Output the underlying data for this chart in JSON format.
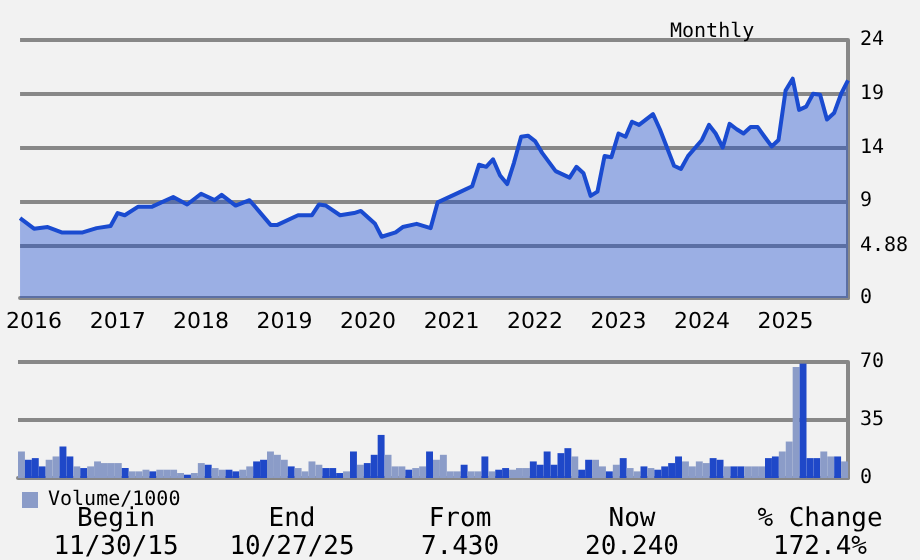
{
  "chart_data": [
    {
      "type": "area",
      "subtitle": "Monthly",
      "color": "#1a4bd0",
      "grid": "y",
      "xlim": [
        "2015-11",
        "2025-10"
      ],
      "xticks": [
        "2016",
        "2017",
        "2018",
        "2019",
        "2020",
        "2021",
        "2022",
        "2023",
        "2024",
        "2025"
      ],
      "ylim": [
        0,
        24
      ],
      "yticks": [
        0,
        4.88,
        9,
        14,
        19,
        24
      ],
      "x": [
        "2015-11",
        "2016-01",
        "2016-03",
        "2016-05",
        "2016-08",
        "2016-10",
        "2016-12",
        "2017-01",
        "2017-02",
        "2017-04",
        "2017-06",
        "2017-09",
        "2017-11",
        "2018-01",
        "2018-03",
        "2018-04",
        "2018-06",
        "2018-08",
        "2018-11",
        "2018-12",
        "2019-03",
        "2019-05",
        "2019-06",
        "2019-07",
        "2019-09",
        "2019-11",
        "2019-12",
        "2020-02",
        "2020-03",
        "2020-05",
        "2020-06",
        "2020-08",
        "2020-10",
        "2020-11",
        "2021-02",
        "2021-04",
        "2021-05",
        "2021-06",
        "2021-07",
        "2021-08",
        "2021-09",
        "2021-10",
        "2021-11",
        "2021-12",
        "2022-01",
        "2022-02",
        "2022-04",
        "2022-06",
        "2022-07",
        "2022-08",
        "2022-09",
        "2022-10",
        "2022-11",
        "2022-12",
        "2023-01",
        "2023-02",
        "2023-03",
        "2023-04",
        "2023-06",
        "2023-07",
        "2023-09",
        "2023-10",
        "2023-11",
        "2024-01",
        "2024-02",
        "2024-03",
        "2024-04",
        "2024-05",
        "2024-06",
        "2024-07",
        "2024-08",
        "2024-09",
        "2024-10",
        "2024-11",
        "2024-12",
        "2025-01",
        "2025-02",
        "2025-03",
        "2025-04",
        "2025-05",
        "2025-06",
        "2025-07",
        "2025-08",
        "2025-09",
        "2025-10"
      ],
      "values": [
        7.43,
        6.45,
        6.6,
        6.1,
        6.1,
        6.5,
        6.7,
        7.9,
        7.7,
        8.5,
        8.5,
        9.4,
        8.7,
        9.7,
        9.1,
        9.6,
        8.6,
        9.1,
        6.8,
        6.8,
        7.7,
        7.7,
        8.7,
        8.6,
        7.7,
        7.9,
        8.1,
        6.9,
        5.7,
        6.1,
        6.6,
        6.9,
        6.5,
        8.9,
        9.8,
        10.4,
        12.4,
        12.2,
        12.9,
        11.4,
        10.6,
        12.6,
        15.0,
        15.1,
        14.6,
        13.5,
        11.8,
        11.2,
        12.2,
        11.6,
        9.5,
        9.9,
        13.2,
        13.1,
        15.3,
        15.0,
        16.4,
        16.1,
        17.1,
        15.7,
        12.3,
        12.0,
        13.2,
        14.7,
        16.1,
        15.3,
        14.0,
        16.2,
        15.7,
        15.3,
        15.9,
        15.9,
        15.0,
        14.1,
        14.7,
        19.3,
        20.4,
        17.5,
        17.8,
        19.0,
        18.9,
        16.6,
        17.2,
        19.0,
        20.24
      ]
    },
    {
      "type": "bar",
      "grid": "y",
      "legend": "bottom left",
      "tick_labels": "y",
      "ylim": [
        0,
        70
      ],
      "yticks": [
        0,
        35,
        70
      ],
      "categories": [
        null,
        null,
        null,
        null,
        null,
        null,
        null,
        null,
        null,
        null,
        null,
        null,
        null,
        null,
        null,
        null,
        null,
        null,
        null,
        null,
        null,
        null,
        null,
        null,
        null,
        null,
        null,
        null,
        null,
        null,
        null,
        null,
        null,
        null,
        null,
        null,
        null,
        null,
        null,
        null,
        null,
        null,
        null,
        null,
        null,
        null,
        null,
        null,
        null,
        null,
        null,
        null,
        null,
        null,
        null,
        null,
        null,
        null,
        null,
        null,
        null,
        null,
        null,
        null,
        null,
        null,
        null,
        null,
        null,
        null,
        null,
        null,
        null,
        null,
        null,
        null,
        null,
        null,
        null,
        null,
        null,
        null,
        null,
        null,
        null,
        null,
        null,
        null,
        null,
        null,
        null,
        null,
        null,
        null,
        null,
        null,
        null,
        null,
        null,
        null,
        null,
        null,
        null,
        null,
        null,
        null,
        null,
        null,
        null,
        null,
        null,
        null,
        null,
        null,
        null,
        null,
        null,
        null,
        null,
        null
      ],
      "series": [
        {
          "name": "Volume/1000",
          "color": "#8b9cc8",
          "values": [
            16,
            11,
            12,
            7,
            11,
            13,
            19,
            13,
            7,
            6,
            7,
            10,
            9,
            9,
            9,
            6,
            4,
            4,
            5,
            4,
            5,
            5,
            5,
            3,
            2,
            3,
            9,
            8,
            6,
            5,
            5,
            4,
            5,
            7,
            10,
            11,
            16,
            14,
            11,
            7,
            6,
            4,
            10,
            8,
            6,
            6,
            3,
            4,
            16,
            8,
            9,
            14,
            26,
            14,
            7,
            7,
            5,
            6,
            7,
            16,
            11,
            14,
            4,
            4,
            8,
            4,
            4,
            13,
            4,
            5,
            6,
            5,
            6,
            6,
            10,
            8,
            16,
            8,
            15,
            18,
            13,
            5,
            11,
            11,
            7,
            4,
            8,
            12,
            6,
            4,
            7,
            6,
            5,
            7,
            9,
            13,
            10,
            7,
            10,
            9,
            12,
            11,
            7,
            7,
            7,
            7,
            7,
            7,
            12,
            13,
            16,
            22,
            67,
            69,
            12,
            12,
            16,
            13,
            13,
            10
          ],
          "colors": [
            "#8b9cc8",
            "#1f48c8",
            "#1f48c8",
            "#1f48c8",
            "#8b9cc8",
            "#8b9cc8",
            "#1f48c8",
            "#1f48c8",
            "#8b9cc8",
            "#1f48c8",
            "#8b9cc8",
            "#8b9cc8",
            "#8b9cc8",
            "#8b9cc8",
            "#8b9cc8",
            "#1f48c8",
            "#8b9cc8",
            "#8b9cc8",
            "#8b9cc8",
            "#1f48c8",
            "#8b9cc8",
            "#8b9cc8",
            "#8b9cc8",
            "#8b9cc8",
            "#1f48c8",
            "#8b9cc8",
            "#8b9cc8",
            "#1f48c8",
            "#8b9cc8",
            "#8b9cc8",
            "#1f48c8",
            "#1f48c8",
            "#8b9cc8",
            "#8b9cc8",
            "#1f48c8",
            "#1f48c8",
            "#8b9cc8",
            "#8b9cc8",
            "#8b9cc8",
            "#1f48c8",
            "#8b9cc8",
            "#8b9cc8",
            "#8b9cc8",
            "#8b9cc8",
            "#1f48c8",
            "#1f48c8",
            "#1f48c8",
            "#8b9cc8",
            "#1f48c8",
            "#8b9cc8",
            "#1f48c8",
            "#1f48c8",
            "#1f48c8",
            "#8b9cc8",
            "#8b9cc8",
            "#8b9cc8",
            "#1f48c8",
            "#8b9cc8",
            "#8b9cc8",
            "#1f48c8",
            "#8b9cc8",
            "#8b9cc8",
            "#8b9cc8",
            "#8b9cc8",
            "#1f48c8",
            "#8b9cc8",
            "#8b9cc8",
            "#1f48c8",
            "#8b9cc8",
            "#1f48c8",
            "#1f48c8",
            "#8b9cc8",
            "#8b9cc8",
            "#8b9cc8",
            "#1f48c8",
            "#1f48c8",
            "#1f48c8",
            "#1f48c8",
            "#1f48c8",
            "#1f48c8",
            "#8b9cc8",
            "#1f48c8",
            "#1f48c8",
            "#8b9cc8",
            "#8b9cc8",
            "#1f48c8",
            "#8b9cc8",
            "#1f48c8",
            "#8b9cc8",
            "#8b9cc8",
            "#1f48c8",
            "#8b9cc8",
            "#1f48c8",
            "#1f48c8",
            "#1f48c8",
            "#1f48c8",
            "#8b9cc8",
            "#8b9cc8",
            "#8b9cc8",
            "#8b9cc8",
            "#1f48c8",
            "#1f48c8",
            "#8b9cc8",
            "#1f48c8",
            "#1f48c8",
            "#8b9cc8",
            "#8b9cc8",
            "#8b9cc8",
            "#1f48c8",
            "#1f48c8",
            "#8b9cc8",
            "#8b9cc8",
            "#8b9cc8",
            "#1f48c8",
            "#1f48c8",
            "#1f48c8",
            "#8b9cc8",
            "#8b9cc8",
            "#1f48c8",
            "#8b9cc8"
          ]
        }
      ],
      "annotations": [
        "Begin",
        "11/30/15",
        "End",
        "10/27/25",
        "From",
        "7.430",
        "Now",
        "20.240",
        "% Change",
        "172.4%"
      ]
    }
  ]
}
